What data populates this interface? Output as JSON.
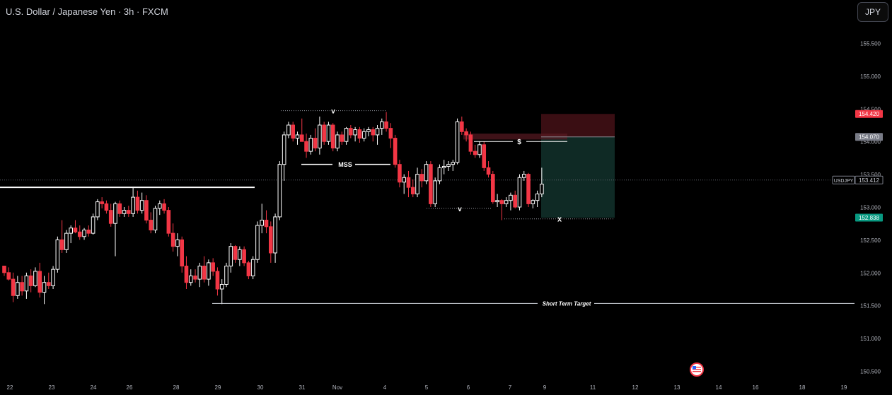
{
  "header": {
    "title": "U.S. Dollar / Japanese Yen · 3h · FXCM"
  },
  "currency_button": {
    "label": "JPY"
  },
  "colors": {
    "bull": "#ffffff",
    "bear": "#f23645",
    "target_zone": "#0f2a25",
    "stop_zone": "#3a0e13"
  },
  "chart_data": {
    "type": "candlestick",
    "symbol": "USDJPY",
    "ylim": [
      150.35,
      155.85
    ],
    "y_ticks": [
      "155.500",
      "155.000",
      "154.500",
      "154.000",
      "153.500",
      "153.000",
      "152.500",
      "152.000",
      "151.500",
      "151.000",
      "150.500"
    ],
    "x_ticks": [
      "22",
      "23",
      "24",
      "26",
      "28",
      "29",
      "30",
      "31",
      "Nov",
      "4",
      "5",
      "6",
      "7",
      "9",
      "11",
      "12",
      "13",
      "14",
      "16",
      "18",
      "19"
    ],
    "price_labels": {
      "stop": "154.420",
      "entry": "154.070",
      "symbol": "USDJPY",
      "last": "153.412",
      "target": "152.838"
    },
    "annotations": {
      "mss": "MSS",
      "top_marker": "v",
      "low_marker": "v",
      "liquidity": "$",
      "entry_marker": "x",
      "short_term_target": "Short Term Target"
    },
    "levels": {
      "resistance": 153.3,
      "short_term_target": 151.53,
      "top_high": 154.47,
      "mss": 153.65,
      "swing_low": 152.98,
      "liquidity": 154.0,
      "x_low": 152.82
    },
    "position": {
      "side": "short",
      "entry": 154.07,
      "stop": 154.42,
      "target": 152.838
    },
    "candles": [
      [
        152.1,
        152.1,
        151.95,
        152.0
      ],
      [
        152.0,
        152.08,
        151.88,
        151.9
      ],
      [
        151.9,
        152.0,
        151.55,
        151.65
      ],
      [
        151.65,
        151.95,
        151.6,
        151.85
      ],
      [
        151.85,
        151.95,
        151.65,
        151.72
      ],
      [
        151.72,
        152.0,
        151.6,
        151.95
      ],
      [
        151.95,
        152.05,
        151.7,
        151.8
      ],
      [
        151.8,
        152.08,
        151.78,
        152.02
      ],
      [
        152.02,
        152.15,
        151.62,
        151.7
      ],
      [
        151.7,
        151.95,
        151.52,
        151.85
      ],
      [
        151.85,
        152.0,
        151.75,
        151.8
      ],
      [
        151.8,
        152.1,
        151.75,
        152.05
      ],
      [
        152.05,
        152.55,
        152.0,
        152.5
      ],
      [
        152.5,
        152.8,
        152.3,
        152.35
      ],
      [
        152.35,
        152.65,
        152.3,
        152.6
      ],
      [
        152.6,
        152.72,
        152.45,
        152.68
      ],
      [
        152.68,
        152.8,
        152.6,
        152.62
      ],
      [
        152.62,
        152.72,
        152.5,
        152.55
      ],
      [
        152.55,
        152.68,
        152.5,
        152.65
      ],
      [
        152.65,
        152.72,
        152.55,
        152.6
      ],
      [
        152.6,
        152.9,
        152.58,
        152.85
      ],
      [
        152.85,
        153.12,
        152.8,
        153.08
      ],
      [
        153.08,
        153.15,
        152.98,
        153.05
      ],
      [
        153.05,
        153.1,
        152.9,
        152.95
      ],
      [
        152.95,
        153.05,
        152.7,
        152.75
      ],
      [
        152.75,
        153.08,
        152.25,
        153.05
      ],
      [
        153.05,
        153.1,
        152.85,
        152.9
      ],
      [
        152.9,
        153.0,
        152.85,
        152.95
      ],
      [
        152.95,
        153.02,
        152.85,
        152.9
      ],
      [
        152.9,
        153.3,
        152.85,
        153.15
      ],
      [
        153.15,
        153.25,
        152.9,
        152.95
      ],
      [
        152.95,
        153.22,
        152.9,
        153.1
      ],
      [
        153.1,
        153.18,
        152.75,
        152.8
      ],
      [
        152.8,
        152.92,
        152.6,
        152.65
      ],
      [
        152.65,
        153.02,
        152.6,
        152.98
      ],
      [
        152.98,
        153.1,
        152.88,
        153.05
      ],
      [
        153.05,
        153.12,
        152.9,
        152.95
      ],
      [
        152.95,
        153.0,
        152.55,
        152.6
      ],
      [
        152.6,
        152.75,
        152.32,
        152.4
      ],
      [
        152.4,
        152.6,
        152.25,
        152.5
      ],
      [
        152.5,
        152.55,
        152.0,
        152.1
      ],
      [
        152.1,
        152.25,
        151.75,
        151.85
      ],
      [
        151.85,
        152.05,
        151.8,
        151.95
      ],
      [
        151.95,
        152.05,
        151.85,
        151.9
      ],
      [
        151.9,
        152.15,
        151.78,
        152.1
      ],
      [
        152.1,
        152.25,
        151.85,
        151.9
      ],
      [
        151.9,
        152.2,
        151.8,
        152.15
      ],
      [
        152.15,
        152.22,
        151.95,
        152.02
      ],
      [
        152.02,
        152.08,
        151.65,
        151.75
      ],
      [
        151.75,
        151.9,
        151.52,
        151.82
      ],
      [
        151.82,
        152.15,
        151.78,
        152.1
      ],
      [
        152.1,
        152.45,
        152.0,
        152.4
      ],
      [
        152.4,
        152.42,
        152.15,
        152.2
      ],
      [
        152.2,
        152.4,
        152.1,
        152.35
      ],
      [
        152.35,
        152.4,
        152.1,
        152.15
      ],
      [
        152.15,
        152.18,
        151.9,
        151.95
      ],
      [
        151.95,
        152.25,
        151.9,
        152.2
      ],
      [
        152.2,
        152.78,
        152.15,
        152.72
      ],
      [
        152.72,
        153.05,
        152.6,
        152.8
      ],
      [
        152.8,
        152.95,
        152.6,
        152.7
      ],
      [
        152.7,
        152.78,
        152.15,
        152.3
      ],
      [
        152.3,
        152.9,
        152.15,
        152.85
      ],
      [
        152.85,
        153.7,
        152.8,
        153.65
      ],
      [
        153.65,
        154.15,
        153.4,
        154.1
      ],
      [
        154.1,
        154.3,
        154.05,
        154.25
      ],
      [
        154.25,
        154.3,
        154.0,
        154.05
      ],
      [
        154.05,
        154.15,
        153.95,
        154.1
      ],
      [
        154.1,
        154.35,
        154.05,
        154.0
      ],
      [
        154.0,
        154.12,
        153.75,
        153.85
      ],
      [
        153.85,
        154.1,
        153.8,
        154.05
      ],
      [
        154.05,
        154.2,
        153.85,
        153.9
      ],
      [
        153.9,
        154.38,
        153.8,
        154.25
      ],
      [
        154.25,
        154.3,
        153.95,
        154.0
      ],
      [
        154.0,
        154.3,
        153.95,
        154.25
      ],
      [
        154.25,
        154.28,
        153.85,
        153.9
      ],
      [
        153.9,
        154.15,
        153.85,
        154.1
      ],
      [
        154.1,
        154.15,
        153.95,
        154.0
      ],
      [
        154.0,
        154.22,
        153.95,
        154.2
      ],
      [
        154.2,
        154.25,
        154.05,
        154.1
      ],
      [
        154.1,
        154.22,
        154.0,
        154.18
      ],
      [
        154.18,
        154.22,
        153.98,
        154.05
      ],
      [
        154.05,
        154.2,
        154.0,
        154.15
      ],
      [
        154.15,
        154.22,
        154.08,
        154.18
      ],
      [
        154.18,
        154.22,
        154.0,
        154.1
      ],
      [
        154.1,
        154.25,
        153.95,
        154.2
      ],
      [
        154.2,
        154.35,
        154.1,
        154.3
      ],
      [
        154.3,
        154.45,
        154.15,
        154.2
      ],
      [
        154.2,
        154.28,
        153.9,
        154.05
      ],
      [
        154.05,
        154.1,
        153.6,
        153.65
      ],
      [
        153.65,
        153.72,
        153.3,
        153.38
      ],
      [
        153.38,
        153.5,
        153.2,
        153.45
      ],
      [
        153.45,
        153.55,
        153.15,
        153.3
      ],
      [
        153.3,
        153.42,
        153.15,
        153.2
      ],
      [
        153.2,
        153.6,
        153.15,
        153.5
      ],
      [
        153.5,
        153.58,
        153.3,
        153.4
      ],
      [
        153.4,
        153.7,
        153.35,
        153.65
      ],
      [
        153.65,
        153.7,
        153.0,
        153.05
      ],
      [
        153.05,
        153.45,
        153.0,
        153.4
      ],
      [
        153.4,
        153.65,
        153.35,
        153.6
      ],
      [
        153.6,
        153.72,
        153.5,
        153.62
      ],
      [
        153.62,
        153.7,
        153.55,
        153.65
      ],
      [
        153.65,
        153.72,
        153.55,
        153.68
      ],
      [
        153.68,
        154.35,
        153.65,
        154.3
      ],
      [
        154.3,
        154.38,
        154.1,
        154.15
      ],
      [
        154.15,
        154.2,
        154.0,
        154.1
      ],
      [
        154.1,
        154.15,
        153.8,
        153.85
      ],
      [
        153.85,
        153.95,
        153.75,
        153.8
      ],
      [
        153.8,
        154.0,
        153.75,
        153.95
      ],
      [
        153.95,
        154.0,
        153.55,
        153.6
      ],
      [
        153.6,
        153.7,
        153.45,
        153.5
      ],
      [
        153.5,
        153.55,
        153.05,
        153.08
      ],
      [
        153.08,
        153.2,
        153.0,
        153.1
      ],
      [
        153.1,
        153.12,
        152.8,
        153.05
      ],
      [
        153.05,
        153.15,
        153.0,
        153.1
      ],
      [
        153.1,
        153.22,
        152.95,
        153.18
      ],
      [
        153.18,
        153.25,
        152.98,
        153.0
      ],
      [
        153.0,
        153.5,
        152.95,
        153.45
      ],
      [
        153.45,
        153.55,
        153.4,
        153.5
      ],
      [
        153.5,
        153.52,
        153.0,
        153.05
      ],
      [
        153.05,
        153.12,
        152.98,
        153.1
      ],
      [
        153.1,
        153.25,
        153.0,
        153.2
      ],
      [
        153.2,
        153.6,
        153.15,
        153.35
      ]
    ]
  }
}
